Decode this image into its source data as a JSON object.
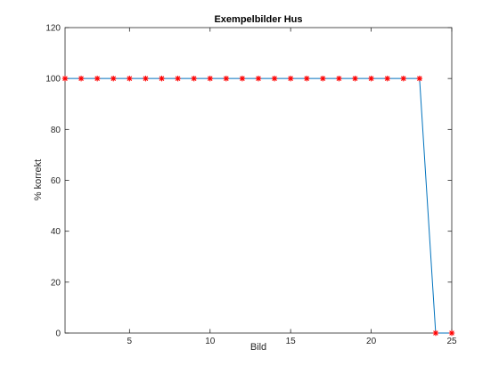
{
  "chart_data": {
    "type": "line",
    "title": "Exempelbilder Hus",
    "xlabel": "Bild",
    "ylabel": "% korrekt",
    "xlim": [
      1,
      25
    ],
    "ylim": [
      0,
      120
    ],
    "xticks": [
      5,
      10,
      15,
      20,
      25
    ],
    "yticks": [
      0,
      20,
      40,
      60,
      80,
      100,
      120
    ],
    "grid": false,
    "series": [
      {
        "x": [
          1,
          2,
          3,
          4,
          5,
          6,
          7,
          8,
          9,
          10,
          11,
          12,
          13,
          14,
          15,
          16,
          17,
          18,
          19,
          20,
          21,
          22,
          23,
          24,
          25
        ],
        "y": [
          100,
          100,
          100,
          100,
          100,
          100,
          100,
          100,
          100,
          100,
          100,
          100,
          100,
          100,
          100,
          100,
          100,
          100,
          100,
          100,
          100,
          100,
          100,
          0,
          0
        ],
        "line_color": "#0072bd",
        "marker": "asterisk",
        "marker_color": "#ff0000"
      }
    ]
  }
}
